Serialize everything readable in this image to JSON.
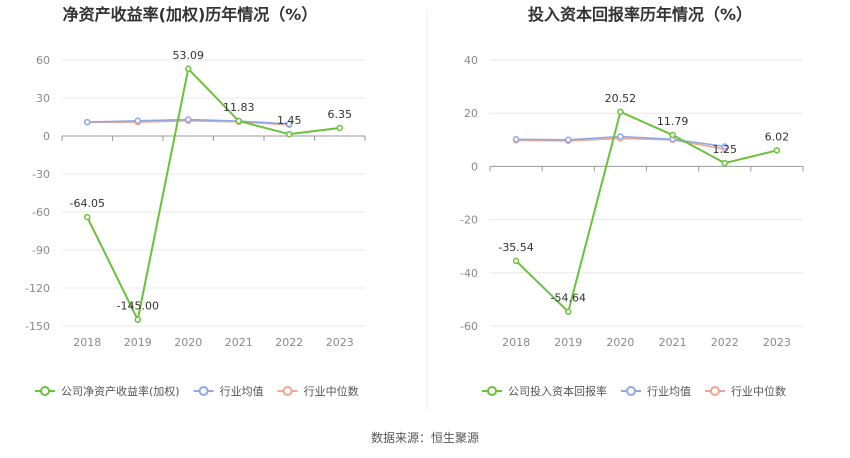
{
  "source_label": "数据来源：恒生聚源",
  "colors": {
    "company": "#6ac13a",
    "avg": "#8fa8e6",
    "median": "#f0a58f",
    "grid": "#e8e8e8",
    "axis": "#999999"
  },
  "chart_data": [
    {
      "type": "line",
      "title": "净资产收益率(加权)历年情况（%）",
      "categories": [
        "2018",
        "2019",
        "2020",
        "2021",
        "2022",
        "2023"
      ],
      "ylim": [
        -150,
        60
      ],
      "yticks": [
        60,
        30,
        0,
        -30,
        -60,
        -90,
        -120,
        -150
      ],
      "grid": true,
      "legend": "bottom",
      "series": [
        {
          "name": "公司净资产收益率(加权)",
          "values": [
            -64.05,
            -145.0,
            53.09,
            11.83,
            1.45,
            6.35
          ],
          "labels": [
            "-64.05",
            "-145.00",
            "53.09",
            "11.83",
            "1.45",
            "6.35"
          ]
        },
        {
          "name": "行业均值",
          "values": [
            11.0,
            12.0,
            13.0,
            11.8,
            9.5,
            null
          ]
        },
        {
          "name": "行业中位数",
          "values": [
            10.8,
            11.0,
            12.0,
            11.2,
            8.8,
            null
          ]
        }
      ]
    },
    {
      "type": "line",
      "title": "投入资本回报率历年情况（%）",
      "categories": [
        "2018",
        "2019",
        "2020",
        "2021",
        "2022",
        "2023"
      ],
      "ylim": [
        -60,
        40
      ],
      "yticks": [
        40,
        20,
        0,
        -20,
        -40,
        -60
      ],
      "grid": true,
      "legend": "bottom",
      "series": [
        {
          "name": "公司投入资本回报率",
          "values": [
            -35.54,
            -54.64,
            20.52,
            11.79,
            1.25,
            6.02
          ],
          "labels": [
            "-35.54",
            "-54.64",
            "20.52",
            "11.79",
            "1.25",
            "6.02"
          ]
        },
        {
          "name": "行业均值",
          "values": [
            10.2,
            10.0,
            11.2,
            10.2,
            7.5,
            null
          ]
        },
        {
          "name": "行业中位数",
          "values": [
            9.8,
            9.6,
            10.5,
            10.0,
            6.5,
            null
          ]
        }
      ]
    }
  ]
}
